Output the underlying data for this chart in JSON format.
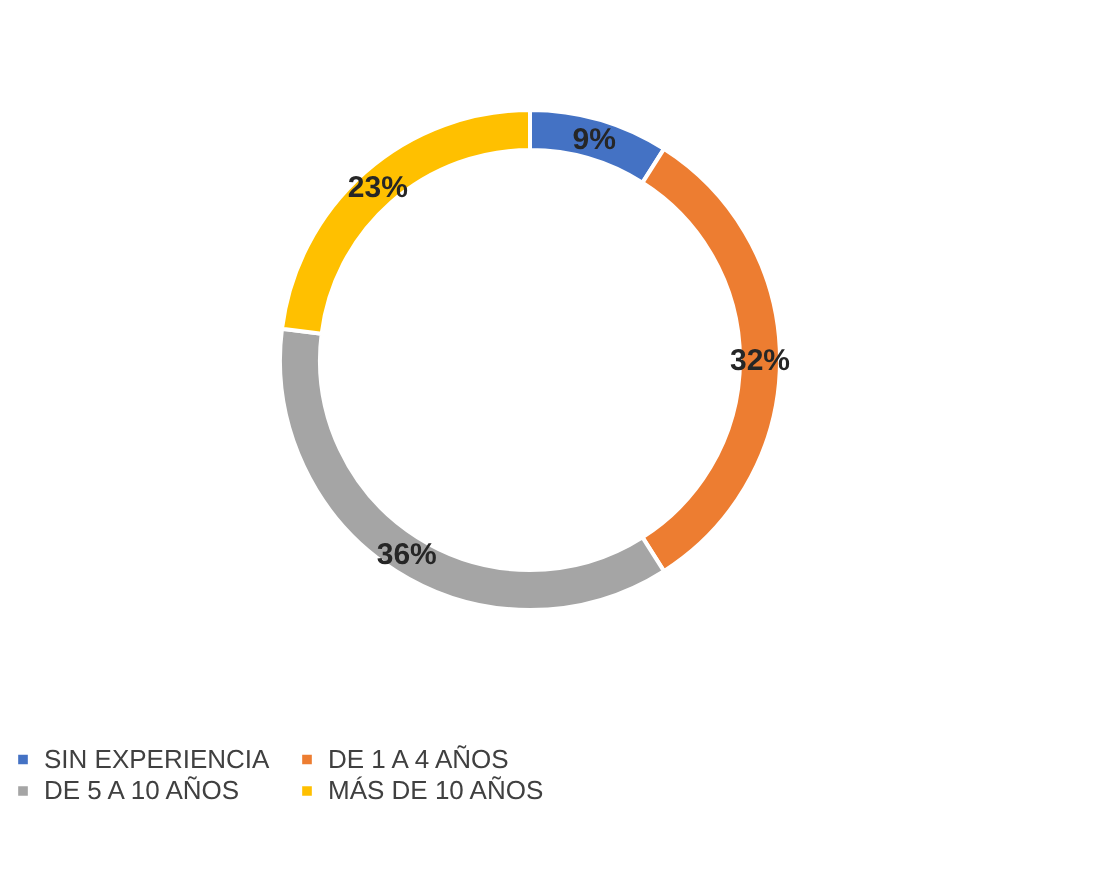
{
  "chart_data": {
    "type": "donut",
    "categories": [
      "SIN EXPERIENCIA",
      "DE 1 A 4 AÑOS",
      "DE 5 A 10 AÑOS",
      "MÁS DE 10 AÑOS"
    ],
    "values": [
      9,
      32,
      36,
      23
    ],
    "colors": [
      "#4472c4",
      "#ed7d31",
      "#a5a5a5",
      "#ffc000"
    ],
    "value_labels": [
      "9%",
      "32%",
      "36%",
      "23%"
    ],
    "legend": "bottom"
  }
}
